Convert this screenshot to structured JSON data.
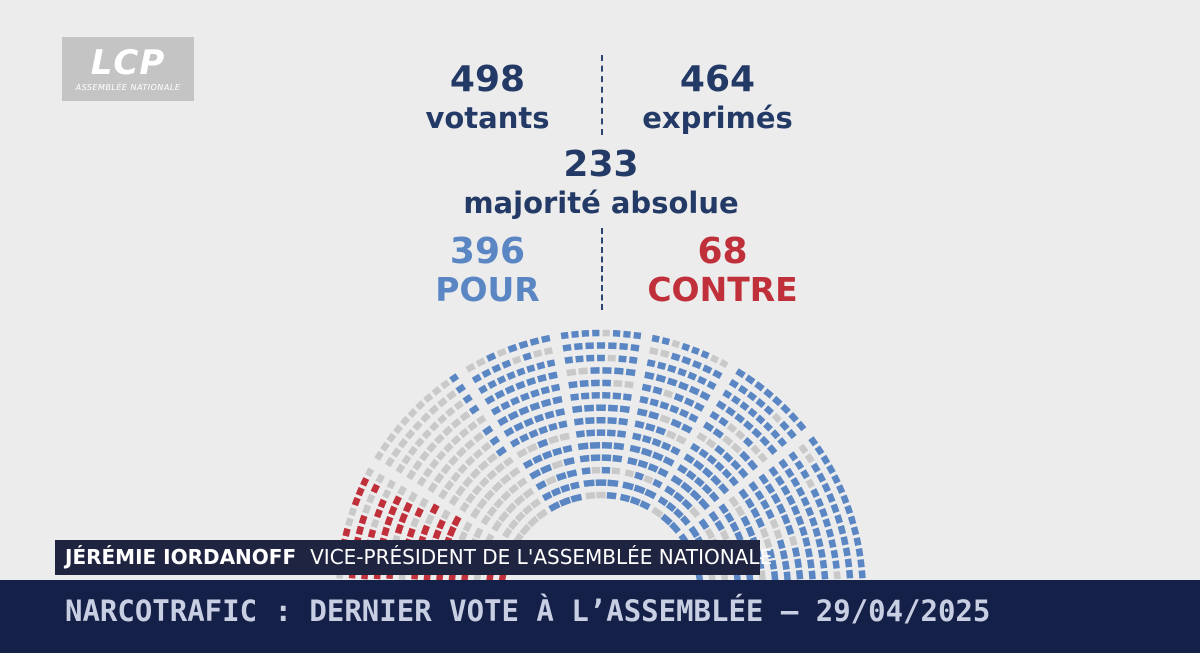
{
  "logo": {
    "mark": "LCP",
    "subtitle": "ASSEMBLÉE NATIONALE"
  },
  "results": {
    "votants": {
      "value": "498",
      "label": "votants"
    },
    "exprimes": {
      "value": "464",
      "label": "exprimés"
    },
    "majorite": {
      "value": "233",
      "label": "majorité absolue"
    },
    "pour": {
      "value": "396",
      "label": "POUR"
    },
    "contre": {
      "value": "68",
      "label": "CONTRE"
    }
  },
  "colors": {
    "pour": "#5a86c4",
    "contre": "#c0303a",
    "empty": "#c9c9c9",
    "text_dark": "#243a66",
    "background": "#ececec"
  },
  "chart_data": {
    "type": "hemicycle",
    "series": [
      {
        "name": "POUR",
        "values": [
          396
        ]
      },
      {
        "name": "CONTRE",
        "values": [
          68
        ]
      }
    ]
  },
  "speaker": {
    "name": "JÉRÉMIE IORDANOFF",
    "title": "VICE-PRÉSIDENT DE L'ASSEMBLÉE NATIONALE"
  },
  "ticker": {
    "text": "NARCOTRAFIC : DERNIER VOTE À L’ASSEMBLÉE – 29/04/2025"
  }
}
